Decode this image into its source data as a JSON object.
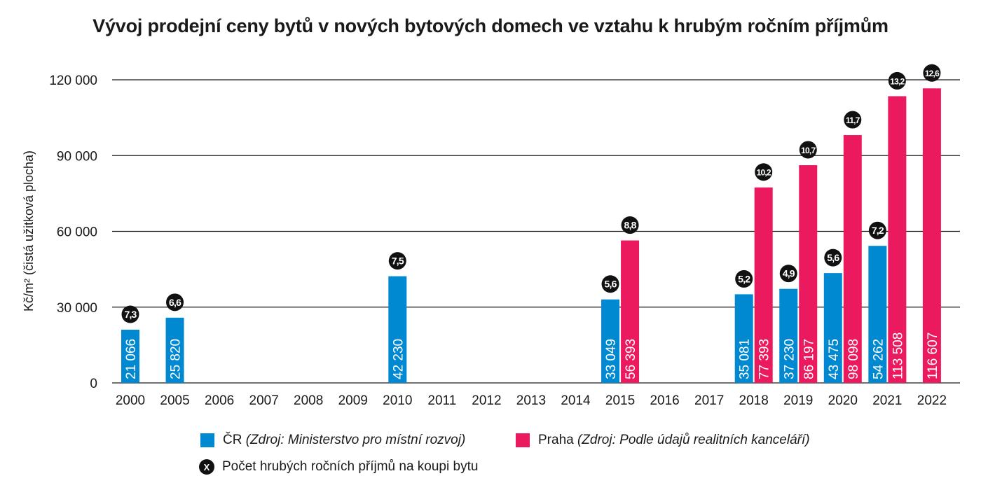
{
  "chart_data": {
    "type": "bar",
    "title": "Vývoj prodejní ceny bytů v nových bytových domech ve vztahu k hrubým ročním příjmům",
    "xlabel": "",
    "ylabel": "Kč/m² (čistá užitková plocha)",
    "ylim": [
      0,
      120000
    ],
    "yticks": [
      0,
      30000,
      60000,
      90000,
      120000
    ],
    "ytick_labels": [
      "0",
      "30 000",
      "60 000",
      "90 000",
      "120 000"
    ],
    "grid": true,
    "categories": [
      "2000",
      "2005",
      "2006",
      "2007",
      "2008",
      "2009",
      "2010",
      "2011",
      "2012",
      "2013",
      "2014",
      "2015",
      "2016",
      "2017",
      "2018",
      "2019",
      "2020",
      "2021",
      "2022"
    ],
    "series": [
      {
        "name": "ČR",
        "source": "(Zdroj: Ministerstvo pro místní rozvoj)",
        "color": "#0088D1",
        "values": [
          21066,
          25820,
          null,
          null,
          null,
          null,
          42230,
          null,
          null,
          null,
          null,
          33049,
          null,
          null,
          35081,
          37230,
          43475,
          54262,
          null
        ],
        "value_labels": [
          "21 066",
          "25 820",
          null,
          null,
          null,
          null,
          "42 230",
          null,
          null,
          null,
          null,
          "33 049",
          null,
          null,
          "35 081",
          "37 230",
          "43 475",
          "54 262",
          null
        ],
        "income_ratio": [
          "7,3",
          "6,6",
          null,
          null,
          null,
          null,
          "7,5",
          null,
          null,
          null,
          null,
          "5,6",
          null,
          null,
          "5,2",
          "4,9",
          "5,6",
          "7,2",
          null
        ]
      },
      {
        "name": "Praha",
        "source": "(Zdroj: Podle údajů realitních kanceláří)",
        "color": "#EB1A5E",
        "values": [
          null,
          null,
          null,
          null,
          null,
          null,
          null,
          null,
          null,
          null,
          null,
          56393,
          null,
          null,
          77393,
          86197,
          98098,
          113508,
          116607
        ],
        "value_labels": [
          null,
          null,
          null,
          null,
          null,
          null,
          null,
          null,
          null,
          null,
          null,
          "56 393",
          null,
          null,
          "77 393",
          "86 197",
          "98 098",
          "113 508",
          "116 607"
        ],
        "income_ratio": [
          null,
          null,
          null,
          null,
          null,
          null,
          null,
          null,
          null,
          null,
          null,
          "8,8",
          null,
          null,
          "10,2",
          "10,7",
          "11,7",
          "13,2",
          "12,6"
        ]
      }
    ],
    "legend": {
      "placement": "bottom",
      "badge_symbol": "X",
      "badge_label": "Počet hrubých ročních příjmů na koupi bytu"
    }
  },
  "colors": {
    "cr": "#0088D1",
    "praha": "#EB1A5E",
    "badge": "#111111",
    "grid": "#1a1a1a"
  }
}
